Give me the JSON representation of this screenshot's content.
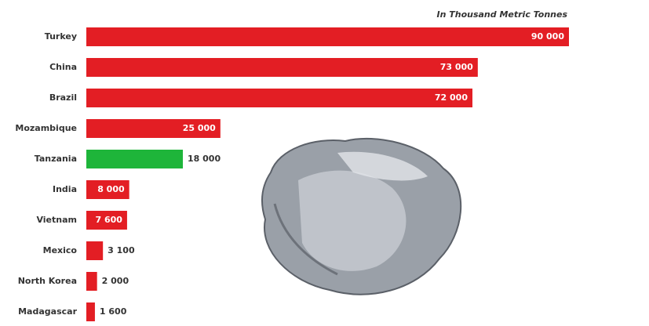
{
  "chart_data": {
    "type": "bar",
    "orientation": "horizontal",
    "subtitle": "In Thousand Metric Tonnes",
    "categories": [
      "Turkey",
      "China",
      "Brazil",
      "Mozambique",
      "Tanzania",
      "India",
      "Vietnam",
      "Mexico",
      "North Korea",
      "Madagascar"
    ],
    "values": [
      90000,
      73000,
      72000,
      25000,
      18000,
      8000,
      7600,
      3100,
      2000,
      1600
    ],
    "value_labels": [
      "90 000",
      "73 000",
      "72 000",
      "25 000",
      "18 000",
      "8 000",
      "7 600",
      "3 100",
      "2 000",
      "1 600"
    ],
    "color": "#e31e24",
    "colors": [
      "#e31e24",
      "#e31e24",
      "#e31e24",
      "#e31e24",
      "#1eb53a",
      "#e31e24",
      "#e31e24",
      "#e31e24",
      "#e31e24",
      "#e31e24"
    ]
  }
}
